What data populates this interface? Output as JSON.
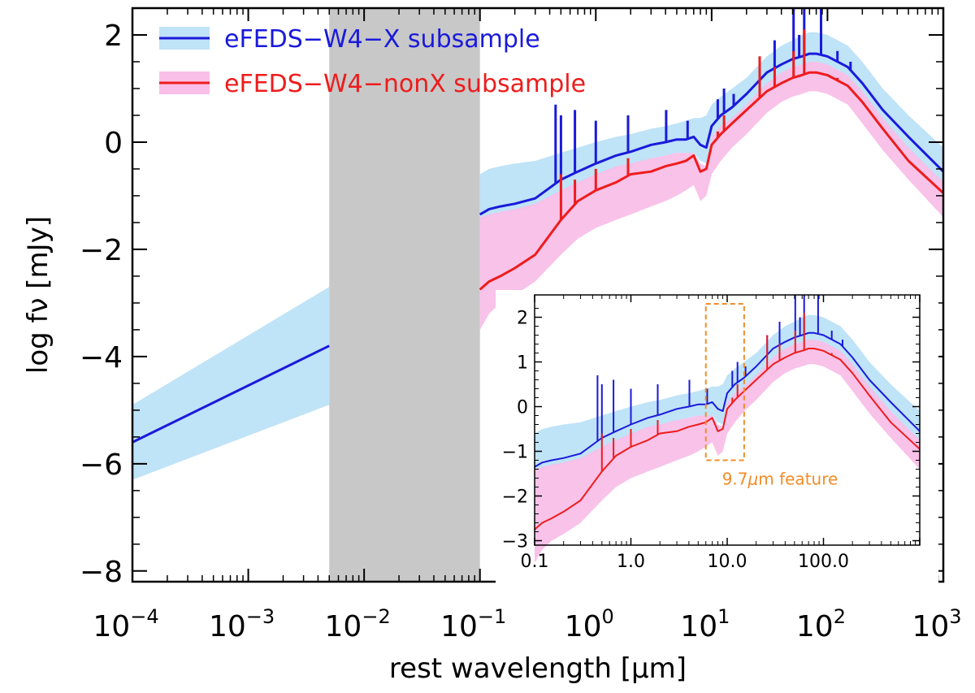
{
  "chart_data": {
    "type": "area",
    "title": "",
    "xlabel": "rest wavelength [μm]",
    "ylabel": "log fν [mJy]",
    "xscale": "log",
    "xlim": [
      0.0001,
      1000
    ],
    "ylim": [
      -8.2,
      2.5
    ],
    "x_tick_labels": [
      {
        "base": "10",
        "exp": "−4"
      },
      {
        "base": "10",
        "exp": "−3"
      },
      {
        "base": "10",
        "exp": "−2"
      },
      {
        "base": "10",
        "exp": "−1"
      },
      {
        "base": "10",
        "exp": "0"
      },
      {
        "base": "10",
        "exp": "1"
      },
      {
        "base": "10",
        "exp": "2"
      },
      {
        "base": "10",
        "exp": "3"
      }
    ],
    "y_tick_labels": [
      "−8",
      "−6",
      "−4",
      "−2",
      "0",
      "2"
    ],
    "shaded_region": {
      "x": [
        0.005,
        0.1
      ],
      "color": "#c8c8c8"
    },
    "legend": [
      {
        "label": "eFEDS−W4−X subsample",
        "line_color": "#1a1adb",
        "band_color": "#bfe3f7"
      },
      {
        "label": "eFEDS−W4−nonX subsample",
        "line_color": "#ee1c1c",
        "band_color": "#f9bfe8"
      }
    ],
    "series": [
      {
        "name": "eFEDS−W4−X subsample",
        "color": "#1a1adb",
        "band_color": "#bfe3f7",
        "segments": [
          {
            "x": [
              0.0001,
              0.005
            ],
            "y": [
              -5.6,
              -3.8
            ],
            "lo": [
              -6.3,
              -4.9
            ],
            "hi": [
              -4.9,
              -2.7
            ]
          },
          {
            "x": [
              0.1,
              0.12,
              0.15,
              0.2,
              0.3,
              0.5,
              0.7,
              1.0,
              1.5,
              2.0,
              3.0,
              4.0,
              5.0,
              6.0,
              7.0,
              8.0,
              9.0,
              10.0,
              12.0,
              15.0,
              20.0,
              30.0,
              40.0,
              50.0,
              60.0,
              70.0,
              80.0,
              100.0,
              150.0,
              200.0,
              300.0,
              500.0,
              1000.0
            ],
            "y": [
              -1.35,
              -1.25,
              -1.2,
              -1.15,
              -1.05,
              -0.7,
              -0.55,
              -0.4,
              -0.25,
              -0.18,
              -0.05,
              0.0,
              0.05,
              0.05,
              0.1,
              -0.05,
              -0.1,
              0.3,
              0.5,
              0.65,
              0.9,
              1.3,
              1.45,
              1.55,
              1.6,
              1.65,
              1.65,
              1.6,
              1.4,
              1.1,
              0.6,
              0.1,
              -0.55
            ],
            "lo": [
              -1.45,
              -1.4,
              -1.35,
              -1.3,
              -1.2,
              -0.95,
              -0.8,
              -0.65,
              -0.5,
              -0.45,
              -0.3,
              -0.25,
              -0.2,
              -0.2,
              -0.2,
              -0.35,
              -0.4,
              0.0,
              0.2,
              0.35,
              0.6,
              1.0,
              1.15,
              1.25,
              1.3,
              1.35,
              1.35,
              1.3,
              1.1,
              0.8,
              0.3,
              -0.2,
              -0.8
            ],
            "hi": [
              -0.6,
              -0.5,
              -0.45,
              -0.4,
              -0.35,
              -0.2,
              -0.1,
              0.0,
              0.1,
              0.15,
              0.25,
              0.3,
              0.35,
              0.4,
              0.45,
              0.45,
              0.5,
              0.7,
              0.85,
              1.0,
              1.2,
              1.6,
              1.8,
              1.9,
              2.0,
              2.05,
              2.05,
              2.0,
              1.8,
              1.5,
              1.0,
              0.5,
              -0.1
            ]
          }
        ],
        "spikes": [
          {
            "x": 0.45,
            "y": 0.7
          },
          {
            "x": 0.5,
            "y": 0.5
          },
          {
            "x": 0.66,
            "y": 0.6
          },
          {
            "x": 1.0,
            "y": 0.4
          },
          {
            "x": 1.9,
            "y": 0.5
          },
          {
            "x": 4.05,
            "y": 0.6
          },
          {
            "x": 6.2,
            "y": 0.4
          },
          {
            "x": 11.3,
            "y": 0.8
          },
          {
            "x": 12.8,
            "y": 1.0
          },
          {
            "x": 15.5,
            "y": 0.9
          },
          {
            "x": 26.0,
            "y": 1.6
          },
          {
            "x": 35.0,
            "y": 1.9
          },
          {
            "x": 51.0,
            "y": 2.5
          },
          {
            "x": 57.0,
            "y": 2.0
          },
          {
            "x": 63.0,
            "y": 2.5
          },
          {
            "x": 88.0,
            "y": 2.5
          },
          {
            "x": 122.0,
            "y": 1.7
          },
          {
            "x": 158.0,
            "y": 1.5
          }
        ]
      },
      {
        "name": "eFEDS−W4−nonX subsample",
        "color": "#ee1c1c",
        "band_color": "#f9bfe8",
        "segments": [
          {
            "x": [
              0.1,
              0.12,
              0.15,
              0.2,
              0.3,
              0.5,
              0.7,
              1.0,
              1.5,
              2.0,
              3.0,
              4.0,
              5.0,
              6.0,
              7.0,
              8.0,
              9.0,
              10.0,
              12.0,
              15.0,
              20.0,
              30.0,
              40.0,
              50.0,
              60.0,
              70.0,
              80.0,
              100.0,
              150.0,
              200.0,
              300.0,
              500.0,
              1000.0
            ],
            "y": [
              -2.75,
              -2.6,
              -2.5,
              -2.35,
              -2.1,
              -1.45,
              -1.1,
              -0.9,
              -0.75,
              -0.6,
              -0.55,
              -0.45,
              -0.4,
              -0.35,
              -0.25,
              -0.55,
              -0.5,
              -0.05,
              0.15,
              0.35,
              0.6,
              0.95,
              1.1,
              1.2,
              1.25,
              1.3,
              1.3,
              1.25,
              1.05,
              0.75,
              0.25,
              -0.35,
              -0.95
            ],
            "lo": [
              -3.5,
              -3.2,
              -3.0,
              -2.85,
              -2.6,
              -2.1,
              -1.8,
              -1.6,
              -1.45,
              -1.35,
              -1.2,
              -1.1,
              -1.0,
              -0.9,
              -0.8,
              -1.1,
              -1.0,
              -0.6,
              -0.35,
              -0.1,
              0.15,
              0.55,
              0.75,
              0.85,
              0.9,
              0.95,
              0.95,
              0.9,
              0.7,
              0.35,
              -0.15,
              -0.7,
              -1.4
            ],
            "hi": [
              -1.4,
              -1.35,
              -1.3,
              -1.25,
              -1.15,
              -0.9,
              -0.75,
              -0.6,
              -0.45,
              -0.4,
              -0.3,
              -0.25,
              -0.2,
              -0.2,
              -0.2,
              -0.4,
              -0.45,
              0.1,
              0.3,
              0.45,
              0.7,
              1.1,
              1.3,
              1.4,
              1.45,
              1.5,
              1.5,
              1.45,
              1.25,
              0.95,
              0.45,
              -0.1,
              -0.75
            ]
          }
        ],
        "spikes": [
          {
            "x": 0.5,
            "y": -0.6
          },
          {
            "x": 0.66,
            "y": -0.7
          },
          {
            "x": 1.0,
            "y": -0.5
          },
          {
            "x": 1.9,
            "y": -0.3
          },
          {
            "x": 11.3,
            "y": 0.2
          },
          {
            "x": 12.8,
            "y": 0.5
          },
          {
            "x": 26.0,
            "y": 1.6
          },
          {
            "x": 35.0,
            "y": 1.4
          },
          {
            "x": 51.0,
            "y": 1.7
          },
          {
            "x": 63.0,
            "y": 2.1
          },
          {
            "x": 122.0,
            "y": 1.2
          }
        ]
      }
    ],
    "inset": {
      "type": "area",
      "xscale": "log",
      "xlim": [
        0.1,
        1000
      ],
      "ylim": [
        -3.1,
        2.5
      ],
      "x_tick_labels": [
        "0.1",
        "1.0",
        "10.0",
        "100.0"
      ],
      "x_tick_values": [
        0.1,
        1,
        10,
        100
      ],
      "y_tick_labels": [
        "−3",
        "−2",
        "−1",
        "0",
        "1",
        "2"
      ],
      "y_tick_values": [
        -3,
        -2,
        -1,
        0,
        1,
        2
      ],
      "highlight_box": {
        "x": [
          6.0,
          15.0
        ],
        "y": [
          -1.2,
          2.3
        ]
      },
      "annotation": {
        "prefix": "9.7",
        "mu": "μ",
        "suffix": "m feature"
      }
    }
  }
}
